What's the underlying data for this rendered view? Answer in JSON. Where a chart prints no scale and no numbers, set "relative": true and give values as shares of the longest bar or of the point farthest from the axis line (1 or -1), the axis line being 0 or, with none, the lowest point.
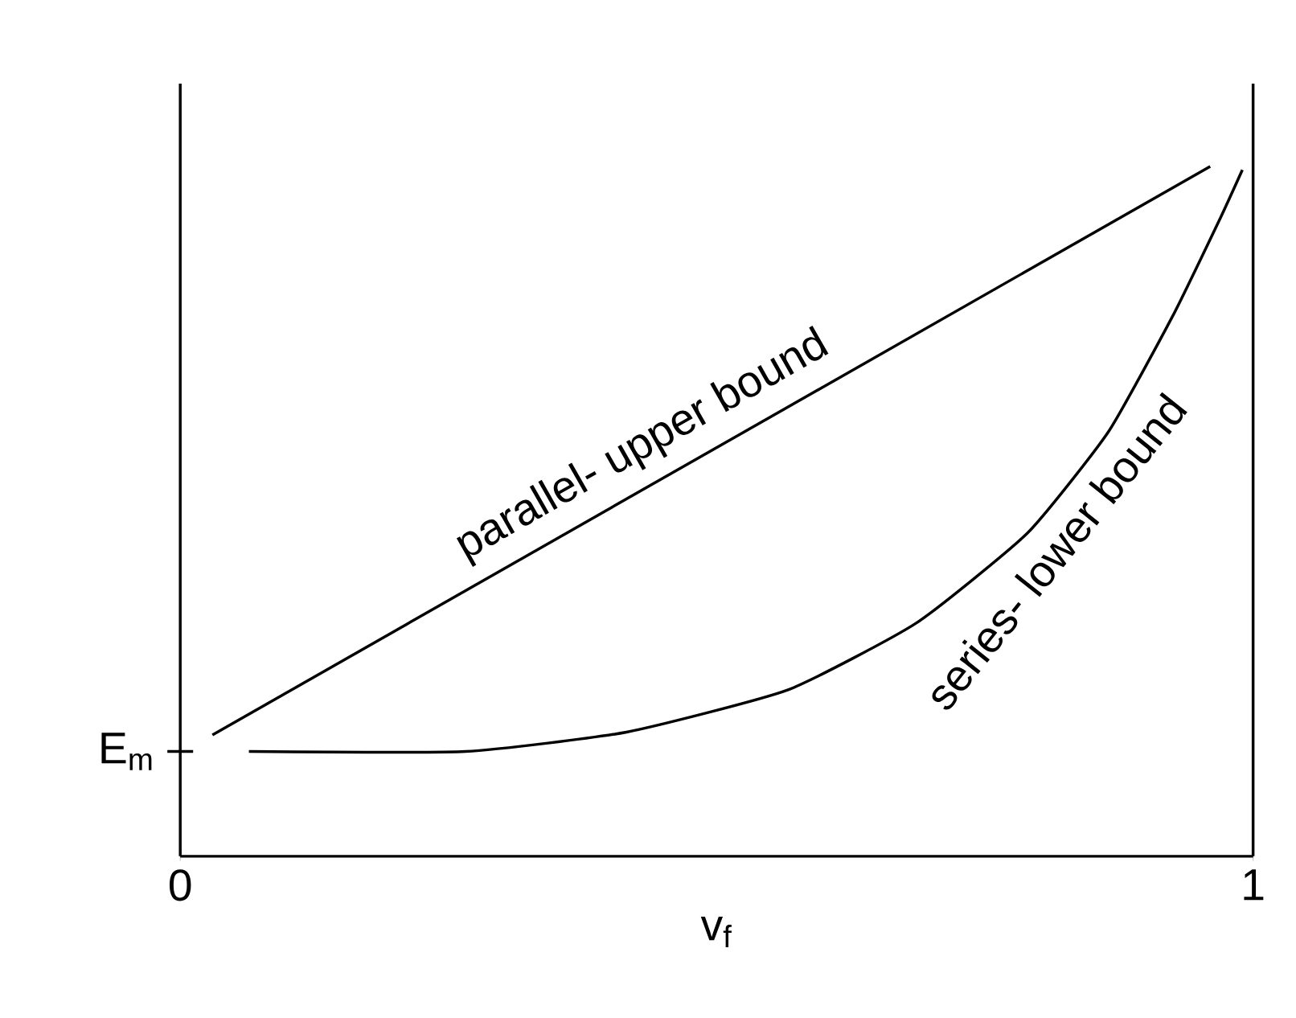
{
  "chart_data": {
    "type": "line",
    "relative": true,
    "xlabel": "v$_{f}$",
    "xlim": [
      0,
      1
    ],
    "xticks": [
      0,
      1
    ],
    "marker": "none",
    "line_style": "solid",
    "series": [
      {
        "name": "parallel- upper bound",
        "color": "#000000",
        "x": [
          0.03,
          0.96
        ],
        "values": [
          0.176,
          1
        ]
      },
      {
        "name": "series- lower bound",
        "color": "#000000",
        "x": [
          0.064,
          0.266,
          0.416,
          0.566,
          0.686,
          0.79,
          0.865,
          0.925,
          0.97,
          0.99
        ],
        "values": [
          0.152,
          0.152,
          0.18,
          0.241,
          0.338,
          0.469,
          0.615,
          0.783,
          0.927,
          0.995
        ]
      }
    ],
    "ref_lines": [
      {
        "axis": "x",
        "value": 1
      },
      {
        "axis": "y",
        "value": 0.152,
        "label": "E$_{m}$"
      }
    ]
  }
}
